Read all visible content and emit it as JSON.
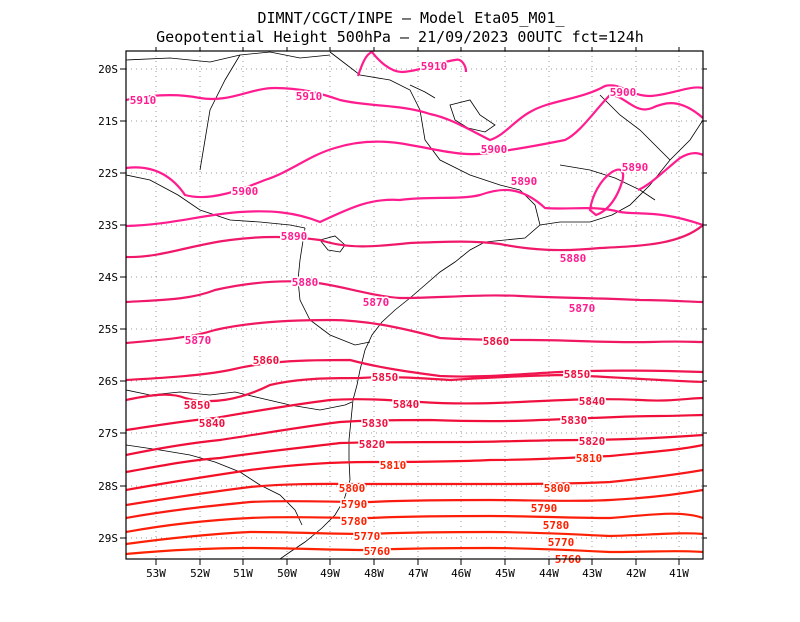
{
  "title": {
    "line1": "DIMNT/CGCT/INPE –  Model Eta05_M01_",
    "line2": "Geopotential Height 500hPa –  21/09/2023 00UTC fct=124h"
  },
  "axes": {
    "lon_labels": [
      "53W",
      "52W",
      "51W",
      "50W",
      "49W",
      "48W",
      "47W",
      "46W",
      "45W",
      "44W",
      "43W",
      "42W",
      "41W"
    ],
    "lat_labels": [
      "20S",
      "21S",
      "22S",
      "23S",
      "24S",
      "25S",
      "26S",
      "27S",
      "28S",
      "29S"
    ]
  },
  "contour_labels": [
    {
      "text": "5910",
      "level": 5910
    },
    {
      "text": "5910",
      "level": 5910
    },
    {
      "text": "5910",
      "level": 5910
    },
    {
      "text": "5900",
      "level": 5900
    },
    {
      "text": "5900",
      "level": 5900
    },
    {
      "text": "5900",
      "level": 5900
    },
    {
      "text": "5890",
      "level": 5890
    },
    {
      "text": "5890",
      "level": 5890
    },
    {
      "text": "5890",
      "level": 5890
    },
    {
      "text": "5880",
      "level": 5880
    },
    {
      "text": "5880",
      "level": 5880
    },
    {
      "text": "5870",
      "level": 5870
    },
    {
      "text": "5870",
      "level": 5870
    },
    {
      "text": "5870",
      "level": 5870
    },
    {
      "text": "5860",
      "level": 5860
    },
    {
      "text": "5860",
      "level": 5860
    },
    {
      "text": "5850",
      "level": 5850
    },
    {
      "text": "5850",
      "level": 5850
    },
    {
      "text": "5850",
      "level": 5850
    },
    {
      "text": "5840",
      "level": 5840
    },
    {
      "text": "5840",
      "level": 5840
    },
    {
      "text": "5840",
      "level": 5840
    },
    {
      "text": "5830",
      "level": 5830
    },
    {
      "text": "5830",
      "level": 5830
    },
    {
      "text": "5820",
      "level": 5820
    },
    {
      "text": "5820",
      "level": 5820
    },
    {
      "text": "5810",
      "level": 5810
    },
    {
      "text": "5810",
      "level": 5810
    },
    {
      "text": "5800",
      "level": 5800
    },
    {
      "text": "5800",
      "level": 5800
    },
    {
      "text": "5790",
      "level": 5790
    },
    {
      "text": "5790",
      "level": 5790
    },
    {
      "text": "5780",
      "level": 5780
    },
    {
      "text": "5780",
      "level": 5780
    },
    {
      "text": "5770",
      "level": 5770
    },
    {
      "text": "5770",
      "level": 5770
    },
    {
      "text": "5760",
      "level": 5760
    },
    {
      "text": "5760",
      "level": 5760
    }
  ],
  "colors": {
    "high": "#ff1c8e",
    "mid": "#f01040",
    "low": "#ff2000",
    "coast": "#000000",
    "grid": "#9a9a9a"
  }
}
